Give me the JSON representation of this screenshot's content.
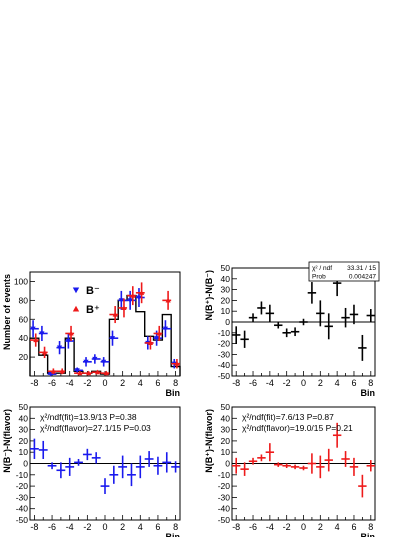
{
  "chart_data": [
    {
      "type": "scatter",
      "panel": "top-left",
      "xlabel": "Bin",
      "ylabel": "Number of events",
      "xlim": [
        -8.5,
        8.5
      ],
      "ylim": [
        0,
        110
      ],
      "xticks": [
        -8,
        -6,
        -4,
        -2,
        0,
        2,
        4,
        6,
        8
      ],
      "yticks": [
        20,
        40,
        60,
        80,
        100
      ],
      "legend": [
        "B⁻",
        "B⁺"
      ],
      "legend_placement": "top-left",
      "histogram": {
        "edges": [
          -8.5,
          -7.5,
          -6.5,
          -5.5,
          -4.5,
          -3.5,
          -2.5,
          -1.5,
          -0.5,
          0.5,
          1.5,
          2.5,
          3.5,
          4.5,
          5.5,
          6.5,
          7.5,
          8.5
        ],
        "values": [
          40,
          22,
          3,
          3,
          40,
          5,
          3,
          5,
          2,
          60,
          80,
          85,
          68,
          42,
          38,
          65,
          10
        ]
      },
      "series": [
        {
          "name": "B⁻",
          "color": "#1a1aee",
          "marker": "triangle-down",
          "x": [
            -8,
            -7,
            -6,
            -5,
            -4,
            -3,
            -2,
            -1,
            0,
            1,
            2,
            3,
            4,
            5,
            6,
            7,
            8
          ],
          "y": [
            50,
            45,
            2,
            30,
            37,
            6,
            15,
            18,
            15,
            40,
            80,
            80,
            83,
            35,
            40,
            50,
            13
          ],
          "yerr": [
            9,
            8,
            3,
            7,
            8,
            3,
            5,
            5,
            5,
            8,
            10,
            10,
            10,
            7,
            8,
            9,
            5
          ]
        },
        {
          "name": "B⁺",
          "color": "#ee1a1a",
          "marker": "triangle-up",
          "x": [
            -8,
            -7,
            -6,
            -5,
            -4,
            -3,
            -2,
            -1,
            0,
            1,
            2,
            3,
            4,
            5,
            6,
            7,
            8
          ],
          "y": [
            38,
            25,
            5,
            5,
            45,
            3,
            3,
            4,
            3,
            65,
            72,
            85,
            88,
            35,
            45,
            80,
            13
          ],
          "yerr": [
            7,
            6,
            3,
            3,
            8,
            2,
            2,
            2,
            2,
            9,
            10,
            10,
            11,
            7,
            8,
            10,
            5
          ]
        }
      ]
    },
    {
      "type": "scatter",
      "panel": "top-right",
      "xlabel": "Bin",
      "ylabel": "N(B⁺)-N(B⁻)",
      "xlim": [
        -8.5,
        8.5
      ],
      "ylim": [
        -50,
        50
      ],
      "xticks": [
        -8,
        -6,
        -4,
        -2,
        0,
        2,
        4,
        6,
        8
      ],
      "yticks": [
        -50,
        -40,
        -30,
        -20,
        -10,
        0,
        10,
        20,
        30,
        40,
        50
      ],
      "stats_box": {
        "row1_label": "χ² / ndf",
        "row1_value": "33.31 / 15",
        "row2_label": "Prob",
        "row2_value": "0.004247"
      },
      "series": [
        {
          "color": "#000000",
          "x": [
            -8,
            -7,
            -6,
            -5,
            -4,
            -3,
            -2,
            -1,
            0,
            1,
            2,
            3,
            4,
            5,
            6,
            7,
            8
          ],
          "y": [
            -12,
            -16,
            4,
            13,
            8,
            -3,
            -10,
            -9,
            0,
            27,
            8,
            -4,
            36,
            4,
            7,
            -24,
            6
          ],
          "yerr": [
            8,
            8,
            4,
            6,
            8,
            3,
            4,
            4,
            3,
            10,
            12,
            12,
            12,
            9,
            9,
            12,
            6
          ]
        }
      ]
    },
    {
      "type": "scatter",
      "panel": "bottom-left",
      "xlabel": "Bin",
      "ylabel": "N(B⁻)-N(flavor)",
      "xlim": [
        -8.5,
        8.5
      ],
      "ylim": [
        -50,
        50
      ],
      "xticks": [
        -8,
        -6,
        -4,
        -2,
        0,
        2,
        4,
        6,
        8
      ],
      "yticks": [
        -50,
        -40,
        -30,
        -20,
        -10,
        0,
        10,
        20,
        30,
        40,
        50
      ],
      "annotations": [
        "χ²/ndf(fit)=13.9/13  P=0.38",
        "χ²/ndf(flavor)=27.1/15  P=0.03"
      ],
      "series": [
        {
          "color": "#1a1aee",
          "x": [
            -8,
            -7,
            -6,
            -5,
            -4,
            -3,
            -2,
            -1,
            0,
            1,
            2,
            3,
            4,
            5,
            6,
            7,
            8
          ],
          "y": [
            13,
            12,
            -2,
            -6,
            -3,
            1,
            8,
            5,
            -20,
            -10,
            -3,
            -10,
            -3,
            4,
            -2,
            1,
            -3
          ],
          "yerr": [
            9,
            8,
            3,
            7,
            8,
            3,
            5,
            5,
            7,
            8,
            10,
            10,
            10,
            7,
            8,
            9,
            5
          ]
        }
      ]
    },
    {
      "type": "scatter",
      "panel": "bottom-right",
      "xlabel": "Bin",
      "ylabel": "N(B⁺)-N(flavor)",
      "xlim": [
        -8.5,
        8.5
      ],
      "ylim": [
        -50,
        50
      ],
      "xticks": [
        -8,
        -6,
        -4,
        -2,
        0,
        2,
        4,
        6,
        8
      ],
      "yticks": [
        -50,
        -40,
        -30,
        -20,
        -10,
        0,
        10,
        20,
        30,
        40,
        50
      ],
      "annotations": [
        "χ²/ndf(fit)=7.6/13  P=0.87",
        "χ²/ndf(flavor)=19.0/15  P=0.21"
      ],
      "series": [
        {
          "color": "#ee1a1a",
          "x": [
            -8,
            -7,
            -6,
            -5,
            -4,
            -3,
            -2,
            -1,
            0,
            1,
            2,
            3,
            4,
            5,
            6,
            7,
            8
          ],
          "y": [
            -2,
            -5,
            2,
            5,
            10,
            -1,
            -2,
            -3,
            -4,
            0,
            -3,
            3,
            25,
            4,
            -3,
            -20,
            -2
          ],
          "yerr": [
            7,
            6,
            3,
            3,
            8,
            2,
            2,
            2,
            2,
            9,
            10,
            10,
            11,
            7,
            8,
            10,
            5
          ]
        }
      ]
    }
  ]
}
